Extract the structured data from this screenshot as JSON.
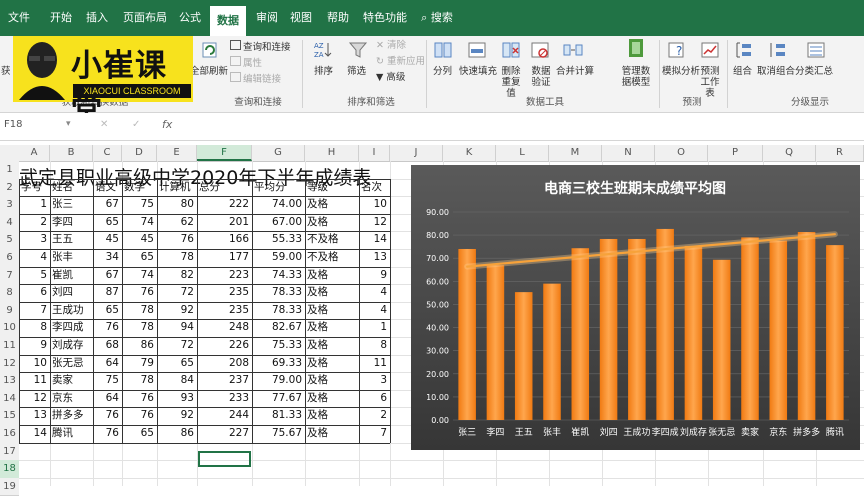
{
  "ribbon": {
    "tabs": [
      "文件",
      "开始",
      "插入",
      "页面布局",
      "公式",
      "数据",
      "审阅",
      "视图",
      "帮助",
      "特色功能",
      "搜索"
    ],
    "active_tab": "数据",
    "buttons": {
      "get_data": "获",
      "refresh_all": "全部刷新",
      "queries_connections": "查询和连接",
      "properties": "属性",
      "edit_links": "编辑链接",
      "sort": "排序",
      "filter": "筛选",
      "clear": "清除",
      "reapply": "重新应用",
      "advanced": "高级",
      "text_to_columns": "分列",
      "flash_fill": "快速填充",
      "remove_duplicates": "删除重复值",
      "data_validation": "数据验证",
      "consolidate": "合并计算",
      "data_model": "管理数据模型",
      "what_if": "模拟分析",
      "forecast_sheet": "预测工作表",
      "group": "组合",
      "ungroup": "取消组合",
      "subtotal": "分类汇总"
    },
    "groups": {
      "get_transform": "获取和转换数据",
      "queries": "查询和连接",
      "sort_filter": "排序和筛选",
      "data_tools": "数据工具",
      "forecast": "预测",
      "outline": "分级显示"
    }
  },
  "logo": {
    "text": "小崔课堂",
    "sub": "XIAOCUI CLASSROOM"
  },
  "formula_bar": {
    "name_box": "F18",
    "fx": "fx"
  },
  "sheet": {
    "columns": [
      "A",
      "B",
      "C",
      "D",
      "E",
      "F",
      "G",
      "H",
      "I",
      "J",
      "K",
      "L",
      "M",
      "N",
      "O",
      "P",
      "Q",
      "R"
    ],
    "selected_col": "F",
    "rows": [
      "1",
      "2",
      "3",
      "4",
      "5",
      "6",
      "7",
      "8",
      "9",
      "10",
      "11",
      "12",
      "13",
      "14",
      "15",
      "16",
      "17",
      "18",
      "19"
    ],
    "selected_row": "18",
    "title": "武定县职业高级中学2020年下半年成绩表",
    "headers": [
      "学号",
      "姓名",
      "语文",
      "数学",
      "计算机",
      "总分",
      "平均分",
      "等级",
      "名次"
    ],
    "records": [
      [
        "1",
        "张三",
        "67",
        "75",
        "80",
        "222",
        "74.00",
        "及格",
        "10"
      ],
      [
        "2",
        "李四",
        "65",
        "74",
        "62",
        "201",
        "67.00",
        "及格",
        "12"
      ],
      [
        "3",
        "王五",
        "45",
        "45",
        "76",
        "166",
        "55.33",
        "不及格",
        "14"
      ],
      [
        "4",
        "张丰",
        "34",
        "65",
        "78",
        "177",
        "59.00",
        "不及格",
        "13"
      ],
      [
        "5",
        "崔凯",
        "67",
        "74",
        "82",
        "223",
        "74.33",
        "及格",
        "9"
      ],
      [
        "6",
        "刘四",
        "87",
        "76",
        "72",
        "235",
        "78.33",
        "及格",
        "4"
      ],
      [
        "7",
        "王成功",
        "65",
        "78",
        "92",
        "235",
        "78.33",
        "及格",
        "4"
      ],
      [
        "8",
        "李四成",
        "76",
        "78",
        "94",
        "248",
        "82.67",
        "及格",
        "1"
      ],
      [
        "9",
        "刘成存",
        "68",
        "86",
        "72",
        "226",
        "75.33",
        "及格",
        "8"
      ],
      [
        "10",
        "张无忌",
        "64",
        "79",
        "65",
        "208",
        "69.33",
        "及格",
        "11"
      ],
      [
        "11",
        "卖家",
        "75",
        "78",
        "84",
        "237",
        "79.00",
        "及格",
        "3"
      ],
      [
        "12",
        "京东",
        "64",
        "76",
        "93",
        "233",
        "77.67",
        "及格",
        "6"
      ],
      [
        "13",
        "拼多多",
        "76",
        "76",
        "92",
        "244",
        "81.33",
        "及格",
        "2"
      ],
      [
        "14",
        "腾讯",
        "76",
        "65",
        "86",
        "227",
        "75.67",
        "及格",
        "7"
      ]
    ]
  },
  "chart_data": {
    "type": "bar",
    "title": "电商三校生班期末成绩平均图",
    "categories": [
      "张三",
      "李四",
      "王五",
      "张丰",
      "崔凯",
      "刘四",
      "王成功",
      "李四成",
      "刘成存",
      "张无忌",
      "卖家",
      "京东",
      "拼多多",
      "腾讯"
    ],
    "values": [
      74.0,
      67.0,
      55.33,
      59.0,
      74.33,
      78.33,
      78.33,
      82.67,
      75.33,
      69.33,
      79.0,
      77.67,
      81.33,
      75.67
    ],
    "yticks": [
      "0.00",
      "10.00",
      "20.00",
      "30.00",
      "40.00",
      "50.00",
      "60.00",
      "70.00",
      "80.00",
      "90.00"
    ],
    "ylim": [
      0,
      90
    ],
    "trendline": "linear",
    "grid": true,
    "colors": {
      "bar": "#f58a1f",
      "bar_light": "#ffb15a",
      "trend": "#f7a23a",
      "background": "#404040",
      "text": "#ffffff"
    }
  }
}
